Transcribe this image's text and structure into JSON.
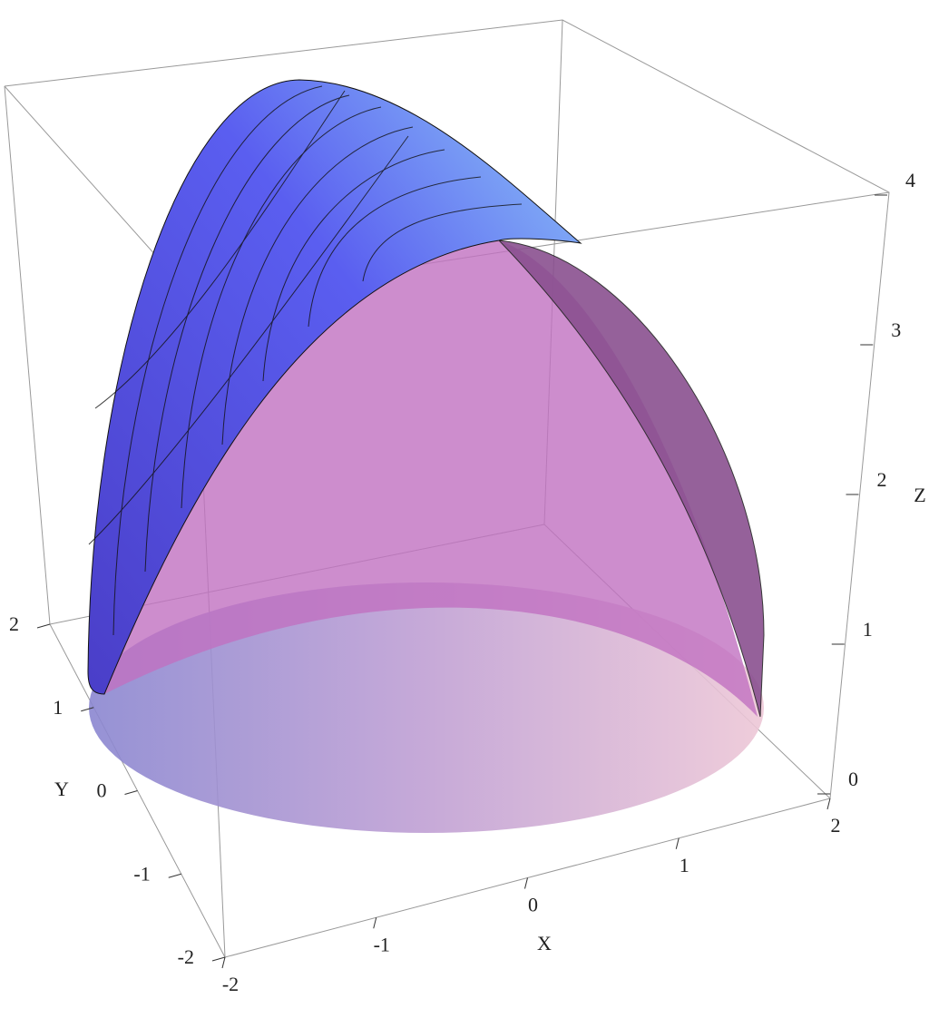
{
  "chart_data": {
    "type": "surface3d",
    "xlabel": "X",
    "ylabel": "Y",
    "zlabel": "Z",
    "xlim": [
      -2,
      2
    ],
    "ylim": [
      -2,
      2
    ],
    "zlim": [
      0,
      4
    ],
    "xticks": [
      -2,
      -1,
      0,
      1,
      2
    ],
    "yticks": [
      -2,
      -1,
      0,
      1,
      2
    ],
    "zticks": [
      0,
      1,
      2,
      3,
      4
    ]
  }
}
